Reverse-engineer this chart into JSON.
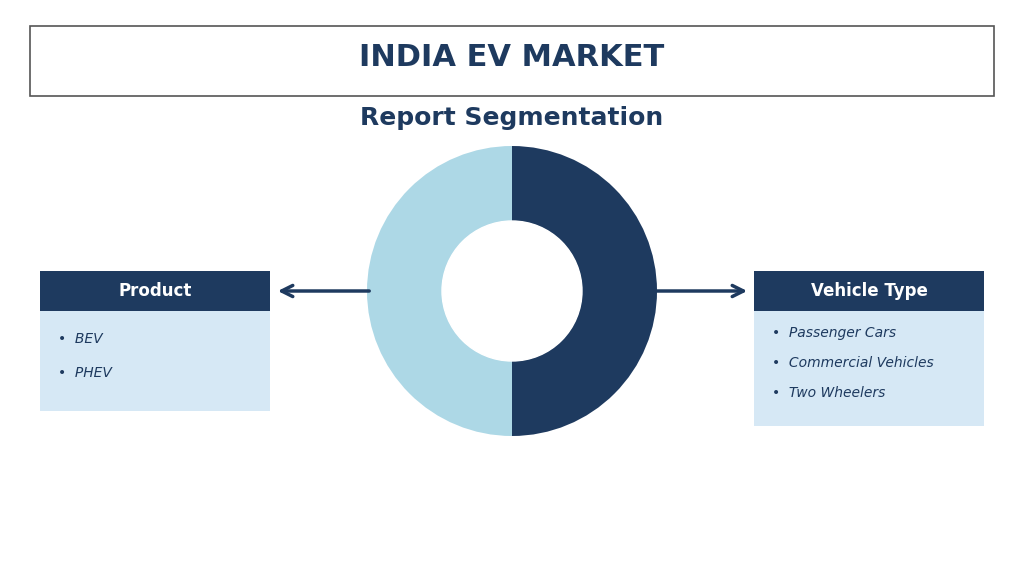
{
  "title_line1": "INDIA EV MARKET",
  "title_line2": "Report Segmentation",
  "dark_blue": "#1e3a5f",
  "light_blue": "#add8e6",
  "light_bg": "#d6e8f5",
  "left_box_title": "Product",
  "left_items": [
    "BEV",
    "PHEV"
  ],
  "right_box_title": "Vehicle Type",
  "right_items": [
    "Passenger Cars",
    "Commercial Vehicles",
    "Two Wheelers"
  ],
  "bg_color": "#ffffff",
  "title_border_color": "#555555"
}
